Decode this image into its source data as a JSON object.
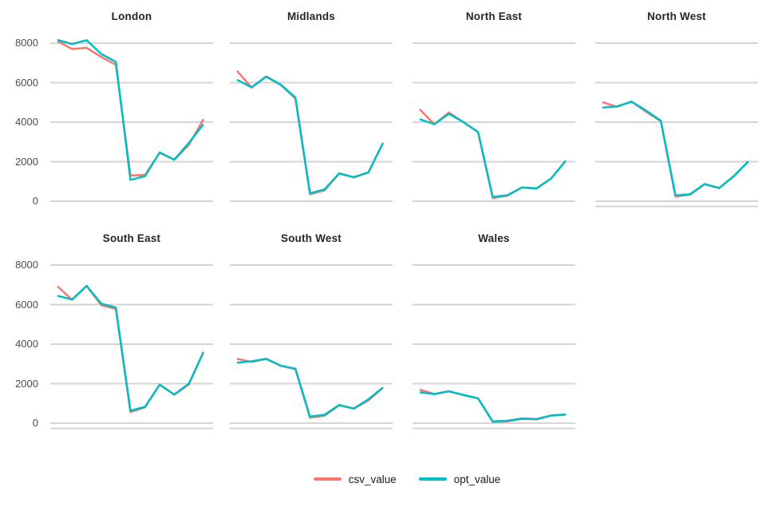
{
  "chart_data": {
    "type": "line",
    "layout": "facet-wrap-4-cols",
    "grid": "horizontal-only",
    "legend_position": "bottom",
    "y_ticks": [
      8000,
      6000,
      4000,
      2000,
      0
    ],
    "y_tick_labels": [
      "8000",
      "6000",
      "4000",
      "2000",
      "0"
    ],
    "ylim": [
      -300,
      8350
    ],
    "x_points": 11,
    "series_names": [
      "csv_value",
      "opt_value"
    ],
    "colors": {
      "csv_value": "#F8766D",
      "opt_value": "#00BFC4"
    },
    "gridline_color": "#d4d4d4",
    "facets": [
      {
        "title": "London",
        "row": 0,
        "col": 0,
        "show_x_axis": false,
        "series": {
          "csv_value": [
            8100,
            7700,
            7760,
            7300,
            6900,
            1300,
            1330,
            2450,
            2100,
            2850,
            4150
          ],
          "opt_value": [
            8160,
            7950,
            8150,
            7450,
            7050,
            1080,
            1270,
            2470,
            2100,
            2950,
            3900
          ]
        }
      },
      {
        "title": "Midlands",
        "row": 0,
        "col": 1,
        "show_x_axis": false,
        "series": {
          "csv_value": [
            6600,
            5750,
            6300,
            5880,
            5200,
            350,
            550,
            1400,
            1200,
            1450,
            2950
          ],
          "opt_value": [
            6150,
            5760,
            6310,
            5900,
            5250,
            400,
            600,
            1410,
            1220,
            1460,
            2950
          ]
        }
      },
      {
        "title": "North East",
        "row": 0,
        "col": 2,
        "show_x_axis": false,
        "series": {
          "csv_value": [
            4650,
            3890,
            4490,
            4000,
            3490,
            160,
            280,
            690,
            640,
            1150,
            2050
          ],
          "opt_value": [
            4150,
            3900,
            4420,
            4000,
            3500,
            220,
            300,
            700,
            650,
            1150,
            2050
          ]
        }
      },
      {
        "title": "North West",
        "row": 0,
        "col": 3,
        "show_x_axis": true,
        "series": {
          "csv_value": [
            5010,
            4780,
            5040,
            4520,
            4050,
            230,
            330,
            860,
            660,
            1270,
            2020
          ],
          "opt_value": [
            4740,
            4800,
            5040,
            4580,
            4070,
            290,
            350,
            870,
            670,
            1270,
            2020
          ]
        }
      },
      {
        "title": "South East",
        "row": 1,
        "col": 0,
        "show_x_axis": true,
        "series": {
          "csv_value": [
            6930,
            6240,
            6940,
            5970,
            5780,
            560,
            800,
            1950,
            1440,
            1960,
            3600
          ],
          "opt_value": [
            6450,
            6260,
            6950,
            6050,
            5850,
            630,
            830,
            1950,
            1450,
            2000,
            3600
          ]
        }
      },
      {
        "title": "South West",
        "row": 1,
        "col": 1,
        "show_x_axis": true,
        "series": {
          "csv_value": [
            3260,
            3100,
            3250,
            2900,
            2730,
            280,
            380,
            900,
            730,
            1150,
            1800
          ],
          "opt_value": [
            3060,
            3130,
            3260,
            2910,
            2760,
            330,
            430,
            920,
            740,
            1210,
            1810
          ]
        }
      },
      {
        "title": "Wales",
        "row": 1,
        "col": 2,
        "show_x_axis": true,
        "series": {
          "csv_value": [
            1700,
            1480,
            1610,
            1420,
            1250,
            60,
            90,
            220,
            190,
            380,
            430
          ],
          "opt_value": [
            1570,
            1470,
            1620,
            1430,
            1260,
            90,
            120,
            240,
            210,
            390,
            440
          ]
        }
      }
    ]
  },
  "axis": {
    "y_tick_labels": [
      "8000",
      "6000",
      "4000",
      "2000",
      "0"
    ]
  },
  "legend": {
    "items": [
      {
        "label": "csv_value",
        "color": "#F8766D"
      },
      {
        "label": "opt_value",
        "color": "#00BFC4"
      }
    ]
  }
}
